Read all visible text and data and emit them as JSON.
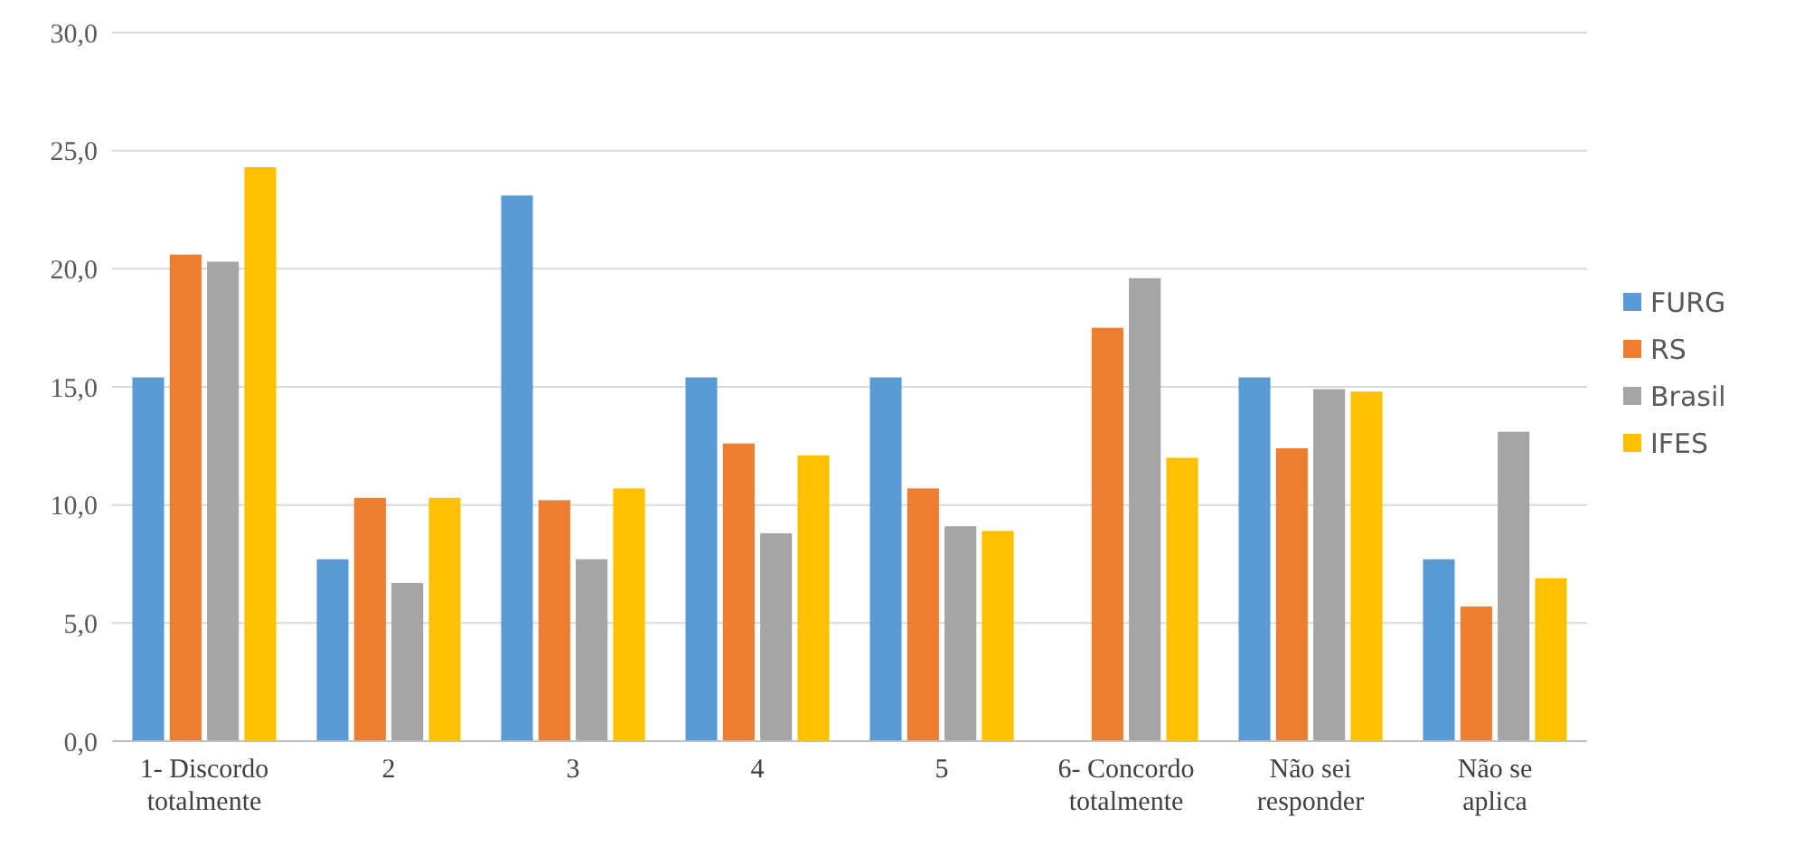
{
  "chart_data": {
    "type": "bar",
    "categories": [
      "1- Discordo totalmente",
      "2",
      "3",
      "4",
      "5",
      "6- Concordo totalmente",
      "Não sei responder",
      "Não se aplica"
    ],
    "series": [
      {
        "name": "FURG",
        "color": "#5b9bd5",
        "values": [
          15.4,
          7.7,
          23.1,
          15.4,
          15.4,
          0,
          15.4,
          7.7
        ]
      },
      {
        "name": "RS",
        "color": "#ed7d31",
        "values": [
          20.6,
          10.3,
          10.2,
          12.6,
          10.7,
          17.5,
          12.4,
          5.7
        ]
      },
      {
        "name": "Brasil",
        "color": "#a5a5a5",
        "values": [
          20.3,
          6.7,
          7.7,
          8.8,
          9.1,
          19.6,
          14.9,
          13.1
        ]
      },
      {
        "name": "IFES",
        "color": "#ffc000",
        "values": [
          24.3,
          10.3,
          10.7,
          12.1,
          8.9,
          12.0,
          14.8,
          6.9
        ]
      }
    ],
    "ylim": [
      0,
      30
    ],
    "yticks": [
      {
        "value": 0,
        "label": "0,0"
      },
      {
        "value": 5,
        "label": "5,0"
      },
      {
        "value": 10,
        "label": "10,0"
      },
      {
        "value": 15,
        "label": "15,0"
      },
      {
        "value": 20,
        "label": "20,0"
      },
      {
        "value": 25,
        "label": "25,0"
      },
      {
        "value": 30,
        "label": "30,0"
      }
    ],
    "grid": "y",
    "legend": "right"
  }
}
